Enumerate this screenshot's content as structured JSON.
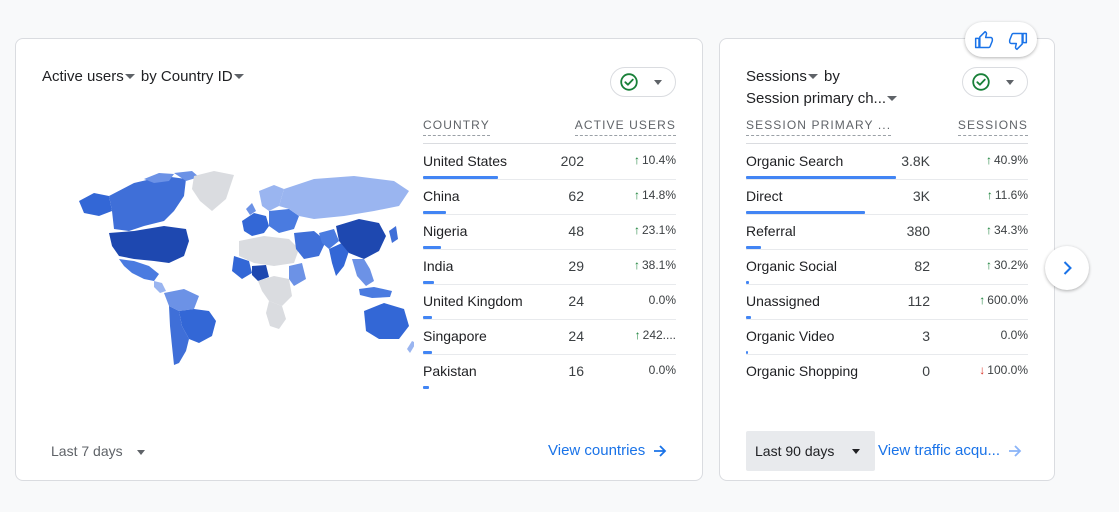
{
  "card1": {
    "title_metric": "Active users",
    "title_by": "by",
    "title_dimension": "Country ID",
    "table_headers": {
      "dimension": "COUNTRY",
      "metric": "ACTIVE USERS"
    },
    "rows": [
      {
        "label": "United States",
        "value": "202",
        "change": "10.4%",
        "direction": "up",
        "share": 1.0
      },
      {
        "label": "China",
        "value": "62",
        "change": "14.8%",
        "direction": "up",
        "share": 0.31
      },
      {
        "label": "Nigeria",
        "value": "48",
        "change": "23.1%",
        "direction": "up",
        "share": 0.24
      },
      {
        "label": "India",
        "value": "29",
        "change": "38.1%",
        "direction": "up",
        "share": 0.14
      },
      {
        "label": "United Kingdom",
        "value": "24",
        "change": "0.0%",
        "direction": "none",
        "share": 0.12
      },
      {
        "label": "Singapore",
        "value": "24",
        "change": "242....",
        "direction": "up",
        "share": 0.12
      },
      {
        "label": "Pakistan",
        "value": "16",
        "change": "0.0%",
        "direction": "none",
        "share": 0.08
      }
    ],
    "date_range": "Last 7 days",
    "view_link": "View countries"
  },
  "card2": {
    "title_metric": "Sessions",
    "title_by": "by",
    "title_dimension": "Session primary ch...",
    "table_headers": {
      "dimension": "SESSION PRIMARY ...",
      "metric": "SESSIONS"
    },
    "rows": [
      {
        "label": "Organic Search",
        "value": "3.8K",
        "change": "40.9%",
        "direction": "up",
        "share": 1.0
      },
      {
        "label": "Direct",
        "value": "3K",
        "change": "11.6%",
        "direction": "up",
        "share": 0.79
      },
      {
        "label": "Referral",
        "value": "380",
        "change": "34.3%",
        "direction": "up",
        "share": 0.1
      },
      {
        "label": "Organic Social",
        "value": "82",
        "change": "30.2%",
        "direction": "up",
        "share": 0.02
      },
      {
        "label": "Unassigned",
        "value": "112",
        "change": "600.0%",
        "direction": "up",
        "share": 0.03
      },
      {
        "label": "Organic Video",
        "value": "3",
        "change": "0.0%",
        "direction": "none",
        "share": 0.005
      },
      {
        "label": "Organic Shopping",
        "value": "0",
        "change": "100.0%",
        "direction": "down",
        "share": 0
      }
    ],
    "date_range": "Last 90 days",
    "view_link": "View traffic acqu..."
  },
  "colors": {
    "accent": "#1a73e8",
    "bar": "#4285f4",
    "up": "#188038",
    "down": "#d93025",
    "check": "#188038"
  },
  "icons": {
    "thumbs_up": "thumbs-up-icon",
    "thumbs_down": "thumbs-down-icon",
    "next": "chevron-right-icon",
    "check": "check-circle-icon"
  }
}
